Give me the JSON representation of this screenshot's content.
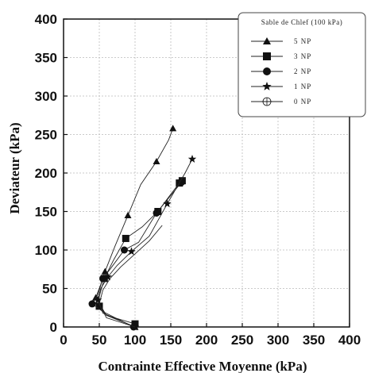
{
  "chart_data": {
    "type": "line",
    "title": "",
    "xlabel": "Contrainte Effective Moyenne (kPa)",
    "ylabel": "Deviateur (kPa)",
    "xlim": [
      0,
      400
    ],
    "ylim": [
      0,
      400
    ],
    "xticks": [
      "0",
      "50",
      "100",
      "150",
      "200",
      "250",
      "300",
      "350",
      "400"
    ],
    "yticks": [
      "0",
      "50",
      "100",
      "150",
      "200",
      "250",
      "300",
      "350",
      "400"
    ],
    "grid": true,
    "legend": {
      "title": "Sable de Chlef (100 kPa)",
      "placement": "top-right"
    },
    "series": [
      {
        "name": "5 NP",
        "marker": "triangle",
        "x": [
          100,
          60,
          45,
          52,
          58,
          72,
          90,
          108,
          130,
          147,
          153
        ],
        "y": [
          0,
          15,
          38,
          55,
          72,
          105,
          145,
          185,
          215,
          243,
          258
        ]
      },
      {
        "name": "3 NP",
        "marker": "square",
        "x": [
          100,
          60,
          50,
          50,
          57,
          70,
          87,
          110,
          132,
          148,
          162,
          166
        ],
        "y": [
          4,
          15,
          27,
          40,
          63,
          87,
          115,
          130,
          150,
          170,
          187,
          190
        ]
      },
      {
        "name": "2 NP",
        "marker": "circle",
        "x": [
          98,
          55,
          40,
          48,
          55,
          65,
          85,
          105,
          130,
          165
        ],
        "y": [
          0,
          20,
          30,
          42,
          63,
          75,
          100,
          110,
          148,
          188
        ]
      },
      {
        "name": "1 NP",
        "marker": "star",
        "x": [
          100,
          55,
          48,
          52,
          62,
          75,
          95,
          120,
          145,
          170,
          180
        ],
        "y": [
          0,
          18,
          35,
          50,
          65,
          80,
          98,
          118,
          160,
          200,
          218
        ]
      },
      {
        "name": "0 NP",
        "marker": "crossed-circle",
        "x": [
          100,
          60,
          50,
          55,
          65,
          80,
          100,
          120,
          138
        ],
        "y": [
          0,
          12,
          30,
          48,
          63,
          78,
          95,
          112,
          132
        ]
      }
    ]
  }
}
